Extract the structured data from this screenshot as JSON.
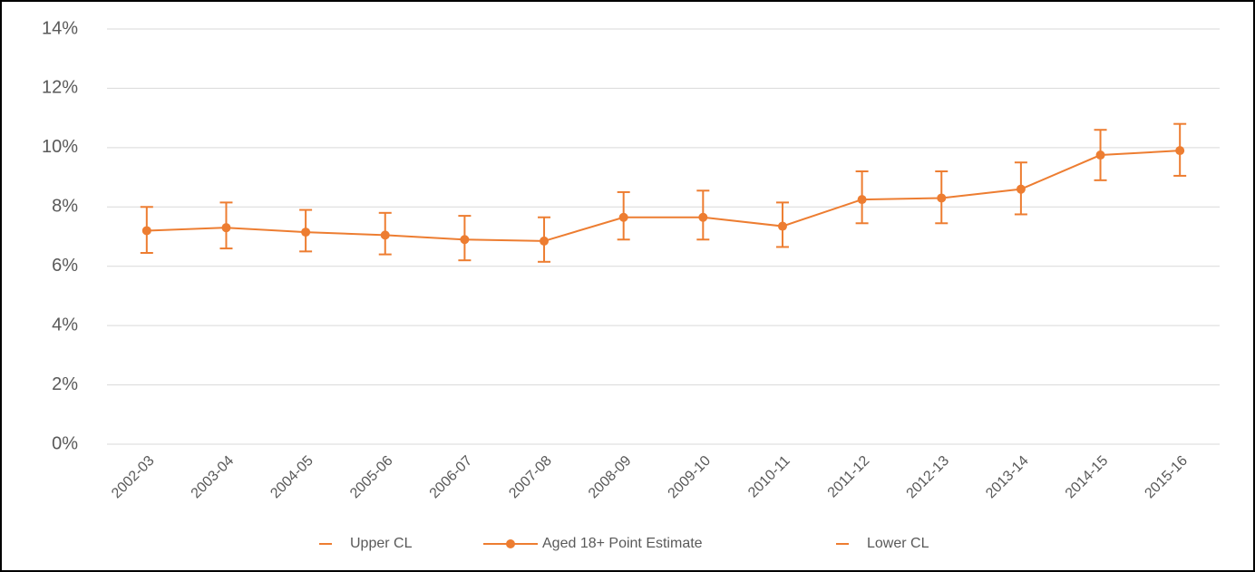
{
  "chart_data": {
    "type": "line",
    "categories": [
      "2002-03",
      "2003-04",
      "2004-05",
      "2005-06",
      "2006-07",
      "2007-08",
      "2008-09",
      "2009-10",
      "2010-11",
      "2011-12",
      "2012-13",
      "2013-14",
      "2014-15",
      "2015-16"
    ],
    "series": [
      {
        "name": "Upper CL",
        "color": "#ed7d31",
        "marker": "dash",
        "line": false,
        "values": [
          8.0,
          8.15,
          7.9,
          7.8,
          7.7,
          7.65,
          8.5,
          8.55,
          8.15,
          9.2,
          9.2,
          9.5,
          10.6,
          10.8
        ]
      },
      {
        "name": "Aged 18+ Point Estimate",
        "color": "#ed7d31",
        "marker": "circle",
        "line": true,
        "values": [
          7.2,
          7.3,
          7.15,
          7.05,
          6.9,
          6.85,
          7.65,
          7.65,
          7.35,
          8.25,
          8.3,
          8.6,
          9.75,
          9.9
        ]
      },
      {
        "name": "Lower CL",
        "color": "#ed7d31",
        "marker": "dash",
        "line": false,
        "values": [
          6.45,
          6.6,
          6.5,
          6.4,
          6.2,
          6.15,
          6.9,
          6.9,
          6.65,
          7.45,
          7.45,
          7.75,
          8.9,
          9.05
        ]
      }
    ],
    "ylim": [
      0,
      14
    ],
    "yticks": [
      {
        "value": 0,
        "label": "0%"
      },
      {
        "value": 2,
        "label": "2%"
      },
      {
        "value": 4,
        "label": "4%"
      },
      {
        "value": 6,
        "label": "6%"
      },
      {
        "value": 8,
        "label": "8%"
      },
      {
        "value": 10,
        "label": "10%"
      },
      {
        "value": 12,
        "label": "12%"
      },
      {
        "value": 14,
        "label": "14%"
      }
    ],
    "grid": true,
    "legend": "bottom"
  }
}
